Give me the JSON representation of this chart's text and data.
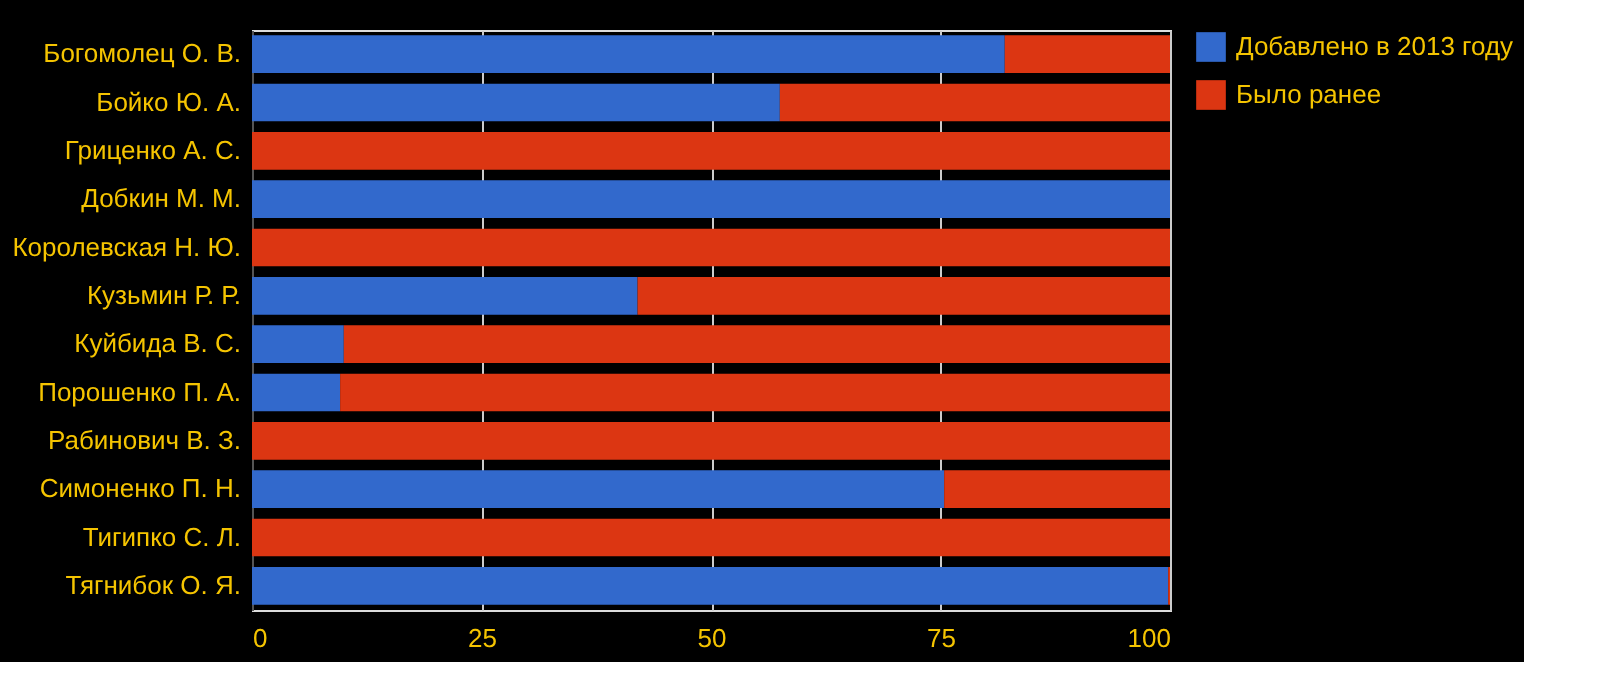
{
  "chart_data": {
    "type": "bar",
    "orientation": "horizontal",
    "stacked": true,
    "categories": [
      "Богомолец О. В.",
      "Бойко Ю. А.",
      "Гриценко А. С.",
      "Добкин М. М.",
      "Королевская Н. Ю.",
      "Кузьмин Р. Р.",
      "Куйбида В. С.",
      "Порошенко П. А.",
      "Рабинович В. З.",
      "Симоненко П. Н.",
      "Тигипко С. Л.",
      "Тягнибок О. Я."
    ],
    "series": [
      {
        "name": "Добавлено в 2013 году",
        "color": "#3269cc",
        "values": [
          82,
          57.5,
          0,
          100,
          0,
          42,
          10,
          9.6,
          0,
          75.4,
          0,
          99.8
        ]
      },
      {
        "name": "Было ранее",
        "color": "#dc3612",
        "values": [
          18,
          42.5,
          100,
          0,
          100,
          58,
          90,
          90.4,
          100,
          24.6,
          100,
          0.2
        ]
      }
    ],
    "xlim": [
      0,
      100
    ],
    "xticks": [
      0,
      25,
      50,
      75,
      100
    ],
    "grid": "x",
    "legend": "top right"
  }
}
